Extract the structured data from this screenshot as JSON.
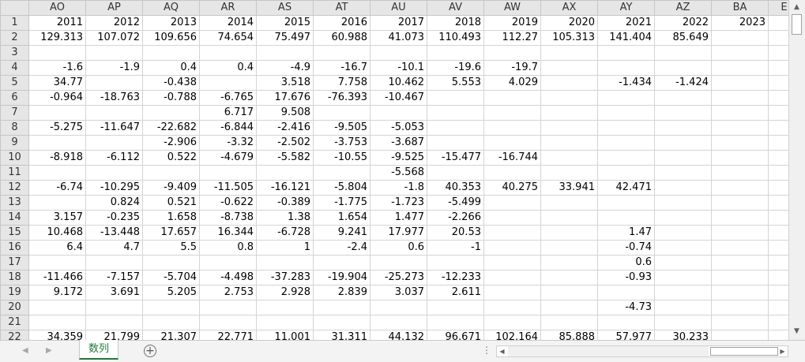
{
  "columns": [
    "AO",
    "AP",
    "AQ",
    "AR",
    "AS",
    "AT",
    "AU",
    "AV",
    "AW",
    "AX",
    "AY",
    "AZ",
    "BA",
    "E"
  ],
  "rows": [
    {
      "n": "1",
      "c": [
        "2011",
        "2012",
        "2013",
        "2014",
        "2015",
        "2016",
        "2017",
        "2018",
        "2019",
        "2020",
        "2021",
        "2022",
        "2023",
        ""
      ]
    },
    {
      "n": "2",
      "c": [
        "129.313",
        "107.072",
        "109.656",
        "74.654",
        "75.497",
        "60.988",
        "41.073",
        "110.493",
        "112.27",
        "105.313",
        "141.404",
        "85.649",
        "",
        ""
      ]
    },
    {
      "n": "3",
      "c": [
        "",
        "",
        "",
        "",
        "",
        "",
        "",
        "",
        "",
        "",
        "",
        "",
        "",
        ""
      ]
    },
    {
      "n": "4",
      "c": [
        "-1.6",
        "-1.9",
        "0.4",
        "0.4",
        "-4.9",
        "-16.7",
        "-10.1",
        "-19.6",
        "-19.7",
        "",
        "",
        "",
        "",
        ""
      ]
    },
    {
      "n": "5",
      "c": [
        "34.77",
        "",
        "-0.438",
        "",
        "3.518",
        "7.758",
        "10.462",
        "5.553",
        "4.029",
        "",
        "-1.434",
        "-1.424",
        "",
        ""
      ]
    },
    {
      "n": "6",
      "c": [
        "-0.964",
        "-18.763",
        "-0.788",
        "-6.765",
        "17.676",
        "-76.393",
        "-10.467",
        "",
        "",
        "",
        "",
        "",
        "",
        ""
      ]
    },
    {
      "n": "7",
      "c": [
        "",
        "",
        "",
        "6.717",
        "9.508",
        "",
        "",
        "",
        "",
        "",
        "",
        "",
        "",
        ""
      ]
    },
    {
      "n": "8",
      "c": [
        "-5.275",
        "-11.647",
        "-22.682",
        "-6.844",
        "-2.416",
        "-9.505",
        "-5.053",
        "",
        "",
        "",
        "",
        "",
        "",
        ""
      ]
    },
    {
      "n": "9",
      "c": [
        "",
        "",
        "-2.906",
        "-3.32",
        "-2.502",
        "-3.753",
        "-3.687",
        "",
        "",
        "",
        "",
        "",
        "",
        ""
      ]
    },
    {
      "n": "10",
      "c": [
        "-8.918",
        "-6.112",
        "0.522",
        "-4.679",
        "-5.582",
        "-10.55",
        "-9.525",
        "-15.477",
        "-16.744",
        "",
        "",
        "",
        "",
        ""
      ]
    },
    {
      "n": "11",
      "c": [
        "",
        "",
        "",
        "",
        "",
        "",
        "-5.568",
        "",
        "",
        "",
        "",
        "",
        "",
        ""
      ]
    },
    {
      "n": "12",
      "c": [
        "-6.74",
        "-10.295",
        "-9.409",
        "-11.505",
        "-16.121",
        "-5.804",
        "-1.8",
        "40.353",
        "40.275",
        "33.941",
        "42.471",
        "",
        "",
        ""
      ]
    },
    {
      "n": "13",
      "c": [
        "",
        "0.824",
        "0.521",
        "-0.622",
        "-0.389",
        "-1.775",
        "-1.723",
        "-5.499",
        "",
        "",
        "",
        "",
        "",
        ""
      ]
    },
    {
      "n": "14",
      "c": [
        "3.157",
        "-0.235",
        "1.658",
        "-8.738",
        "1.38",
        "1.654",
        "1.477",
        "-2.266",
        "",
        "",
        "",
        "",
        "",
        ""
      ]
    },
    {
      "n": "15",
      "c": [
        "10.468",
        "-13.448",
        "17.657",
        "16.344",
        "-6.728",
        "9.241",
        "17.977",
        "20.53",
        "",
        "",
        "1.47",
        "",
        "",
        ""
      ]
    },
    {
      "n": "16",
      "c": [
        "6.4",
        "4.7",
        "5.5",
        "0.8",
        "1",
        "-2.4",
        "0.6",
        "-1",
        "",
        "",
        "-0.74",
        "",
        "",
        ""
      ]
    },
    {
      "n": "17",
      "c": [
        "",
        "",
        "",
        "",
        "",
        "",
        "",
        "",
        "",
        "",
        "0.6",
        "",
        "",
        ""
      ]
    },
    {
      "n": "18",
      "c": [
        "-11.466",
        "-7.157",
        "-5.704",
        "-4.498",
        "-37.283",
        "-19.904",
        "-25.273",
        "-12.233",
        "",
        "",
        "-0.93",
        "",
        "",
        ""
      ]
    },
    {
      "n": "19",
      "c": [
        "9.172",
        "3.691",
        "5.205",
        "2.753",
        "2.928",
        "2.839",
        "3.037",
        "2.611",
        "",
        "",
        "",
        "",
        "",
        ""
      ]
    },
    {
      "n": "20",
      "c": [
        "",
        "",
        "",
        "",
        "",
        "",
        "",
        "",
        "",
        "",
        "-4.73",
        "",
        "",
        ""
      ]
    },
    {
      "n": "21",
      "c": [
        "",
        "",
        "",
        "",
        "",
        "",
        "",
        "",
        "",
        "",
        "",
        "",
        "",
        ""
      ]
    },
    {
      "n": "22",
      "c": [
        "34.359",
        "21.799",
        "21.307",
        "22.771",
        "11.001",
        "31.311",
        "44.132",
        "96.671",
        "102.164",
        "85.888",
        "57.977",
        "30.233",
        "",
        ""
      ]
    }
  ],
  "sheet_tab": "数列",
  "add_sheet_symbol": "+",
  "colors": {
    "header_bg": "#e6e6e6",
    "grid": "#d4d4d4",
    "tab_accent": "#1f7b3a"
  }
}
